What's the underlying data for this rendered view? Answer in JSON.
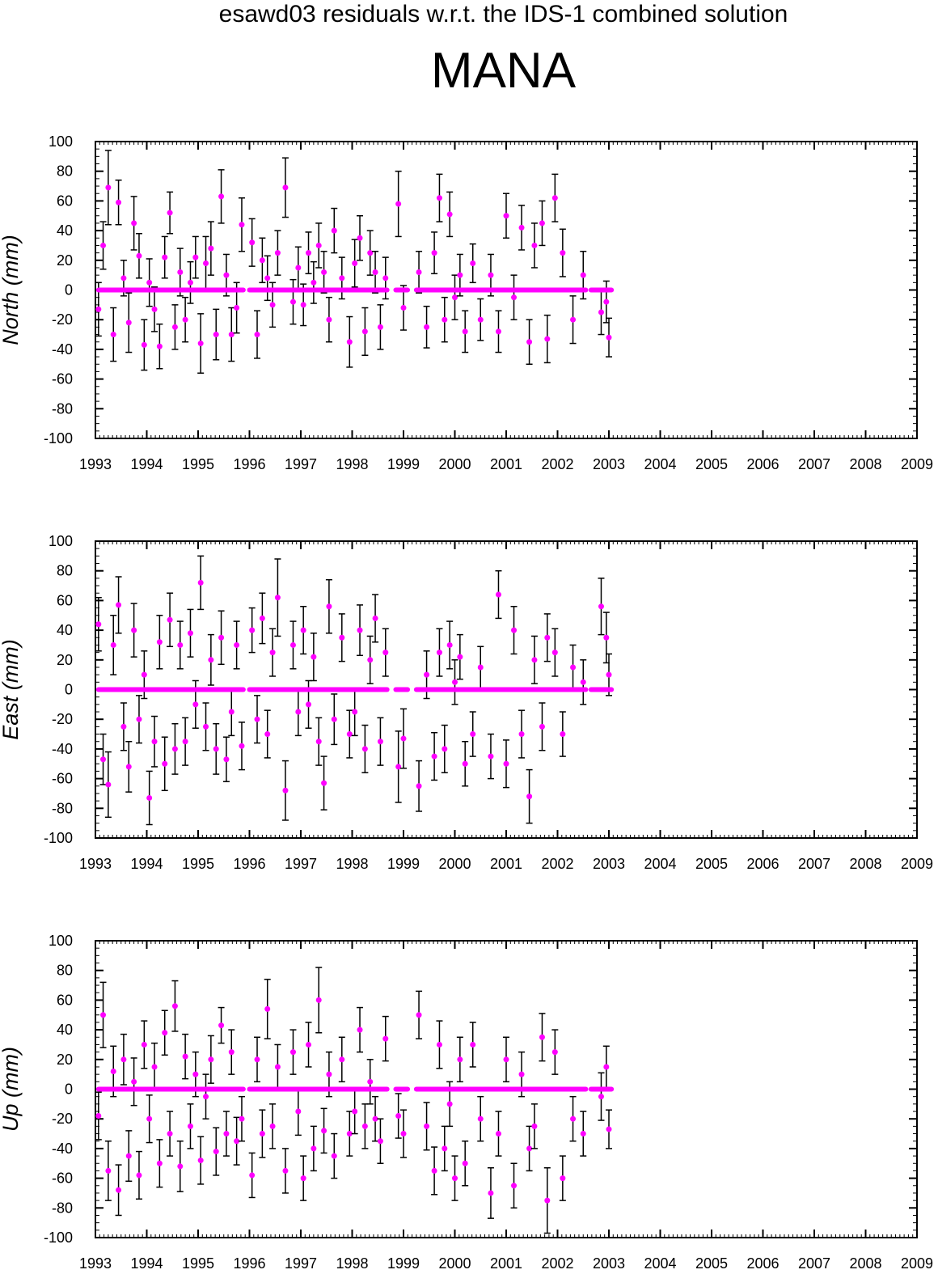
{
  "title": "esawd03 residuals w.r.t. the IDS-1 combined solution",
  "station": "MANA",
  "colors": {
    "marker": "#ff00ff",
    "errorbar": "#000000",
    "axes": "#000000",
    "background": "#ffffff"
  },
  "chart_data": [
    {
      "type": "scatter",
      "component": "North",
      "ylabel": "North (mm)",
      "xlim": [
        1993,
        2009
      ],
      "ylim": [
        -100,
        100
      ],
      "x_ticks": [
        "1993",
        "1994",
        "1995",
        "1996",
        "1997",
        "1998",
        "1999",
        "2000",
        "2001",
        "2002",
        "2003",
        "2004",
        "2005",
        "2006",
        "2007",
        "2008",
        "2009"
      ],
      "y_ticks": [
        "100",
        "80",
        "60",
        "40",
        "20",
        "0",
        "-20",
        "-40",
        "-60",
        "-80",
        "-100"
      ],
      "grid": false,
      "series": [
        {
          "values_note": "weekly residuals with error bars",
          "x": [
            1993.06,
            1993.15,
            1993.25,
            1993.35,
            1993.45,
            1993.55,
            1993.65,
            1993.75,
            1993.85,
            1993.95,
            1994.05,
            1994.15,
            1994.25,
            1994.35,
            1994.45,
            1994.55,
            1994.65,
            1994.75,
            1994.85,
            1994.95,
            1995.05,
            1995.15,
            1995.25,
            1995.35,
            1995.45,
            1995.55,
            1995.65,
            1995.75,
            1995.85,
            1996.05,
            1996.15,
            1996.25,
            1996.35,
            1996.45,
            1996.55,
            1996.7,
            1996.85,
            1996.95,
            1997.05,
            1997.15,
            1997.25,
            1997.35,
            1997.45,
            1997.55,
            1997.65,
            1997.8,
            1997.95,
            1998.05,
            1998.15,
            1998.25,
            1998.35,
            1998.45,
            1998.55,
            1998.65,
            1998.9,
            1999.0,
            1999.3,
            1999.45,
            1999.6,
            1999.7,
            1999.8,
            1999.9,
            2000.0,
            2000.1,
            2000.2,
            2000.35,
            2000.5,
            2000.7,
            2000.85,
            2001.0,
            2001.15,
            2001.3,
            2001.45,
            2001.55,
            2001.7,
            2001.8,
            2001.95,
            2002.1,
            2002.3,
            2002.5,
            2002.85,
            2002.95,
            2003.0
          ],
          "y": [
            -13,
            30,
            69,
            -30,
            59,
            8,
            -22,
            45,
            23,
            -37,
            5,
            -13,
            -38,
            22,
            52,
            -25,
            12,
            -20,
            5,
            22,
            -36,
            18,
            28,
            -30,
            63,
            10,
            -30,
            -12,
            44,
            32,
            -30,
            20,
            8,
            -10,
            25,
            69,
            -8,
            15,
            -10,
            25,
            5,
            30,
            12,
            -20,
            40,
            8,
            -35,
            18,
            35,
            -28,
            25,
            12,
            -25,
            8,
            58,
            -12,
            12,
            -25,
            25,
            62,
            -20,
            51,
            -5,
            10,
            -28,
            18,
            -20,
            10,
            -28,
            50,
            -5,
            42,
            -35,
            30,
            45,
            -33,
            62,
            25,
            -20,
            10,
            -15,
            -8,
            -32
          ],
          "err": [
            18,
            16,
            25,
            18,
            15,
            12,
            20,
            18,
            15,
            17,
            16,
            15,
            15,
            14,
            14,
            15,
            16,
            15,
            14,
            14,
            20,
            18,
            18,
            17,
            18,
            14,
            18,
            17,
            18,
            16,
            16,
            15,
            15,
            15,
            15,
            20,
            15,
            14,
            14,
            14,
            14,
            15,
            14,
            15,
            15,
            14,
            17,
            16,
            15,
            16,
            15,
            14,
            15,
            14,
            22,
            15,
            14,
            14,
            14,
            16,
            15,
            15,
            15,
            14,
            14,
            13,
            14,
            14,
            14,
            15,
            15,
            15,
            15,
            15,
            15,
            16,
            16,
            16,
            16,
            16,
            15,
            14,
            13
          ]
        }
      ]
    },
    {
      "type": "scatter",
      "component": "East",
      "ylabel": "East (mm)",
      "xlim": [
        1993,
        2009
      ],
      "ylim": [
        -100,
        100
      ],
      "x_ticks": [
        "1993",
        "1994",
        "1995",
        "1996",
        "1997",
        "1998",
        "1999",
        "2000",
        "2001",
        "2002",
        "2003",
        "2004",
        "2005",
        "2006",
        "2007",
        "2008",
        "2009"
      ],
      "y_ticks": [
        "100",
        "80",
        "60",
        "40",
        "20",
        "0",
        "-20",
        "-40",
        "-60",
        "-80",
        "-100"
      ],
      "grid": false,
      "series": [
        {
          "x": [
            1993.06,
            1993.15,
            1993.25,
            1993.35,
            1993.45,
            1993.55,
            1993.65,
            1993.75,
            1993.85,
            1993.95,
            1994.05,
            1994.15,
            1994.25,
            1994.35,
            1994.45,
            1994.55,
            1994.65,
            1994.75,
            1994.85,
            1994.95,
            1995.05,
            1995.15,
            1995.25,
            1995.35,
            1995.45,
            1995.55,
            1995.65,
            1995.75,
            1995.85,
            1996.05,
            1996.15,
            1996.25,
            1996.35,
            1996.45,
            1996.55,
            1996.7,
            1996.85,
            1996.95,
            1997.05,
            1997.15,
            1997.25,
            1997.35,
            1997.45,
            1997.55,
            1997.65,
            1997.8,
            1997.95,
            1998.05,
            1998.15,
            1998.25,
            1998.35,
            1998.45,
            1998.55,
            1998.65,
            1998.9,
            1999.0,
            1999.3,
            1999.45,
            1999.6,
            1999.7,
            1999.8,
            1999.9,
            2000.0,
            2000.1,
            2000.2,
            2000.35,
            2000.5,
            2000.7,
            2000.85,
            2001.0,
            2001.15,
            2001.3,
            2001.45,
            2001.55,
            2001.7,
            2001.8,
            2001.95,
            2002.1,
            2002.3,
            2002.5,
            2002.85,
            2002.95,
            2003.0
          ],
          "y": [
            44,
            -47,
            -64,
            30,
            57,
            -25,
            -52,
            40,
            -20,
            10,
            -73,
            -35,
            32,
            -50,
            47,
            -40,
            30,
            -35,
            38,
            -10,
            72,
            -25,
            20,
            -40,
            35,
            -47,
            -15,
            30,
            -38,
            40,
            -20,
            48,
            -30,
            25,
            62,
            -68,
            30,
            -15,
            40,
            -10,
            22,
            -35,
            -63,
            56,
            -20,
            35,
            -30,
            -15,
            40,
            -40,
            20,
            48,
            -35,
            25,
            -52,
            -33,
            -65,
            10,
            -45,
            25,
            -40,
            30,
            5,
            22,
            -50,
            -30,
            15,
            -45,
            64,
            -50,
            40,
            -30,
            -72,
            20,
            -25,
            35,
            25,
            -30,
            15,
            5,
            56,
            35,
            10
          ],
          "err": [
            18,
            17,
            22,
            20,
            19,
            16,
            17,
            18,
            16,
            16,
            18,
            17,
            18,
            18,
            18,
            17,
            16,
            16,
            16,
            16,
            18,
            16,
            17,
            17,
            18,
            15,
            16,
            16,
            16,
            15,
            16,
            17,
            16,
            16,
            26,
            20,
            16,
            16,
            16,
            16,
            16,
            16,
            18,
            18,
            17,
            16,
            16,
            16,
            17,
            16,
            16,
            16,
            16,
            16,
            24,
            20,
            17,
            16,
            16,
            16,
            16,
            16,
            15,
            15,
            15,
            15,
            14,
            15,
            16,
            16,
            16,
            16,
            18,
            16,
            16,
            16,
            16,
            15,
            15,
            15,
            19,
            17,
            14
          ]
        }
      ]
    },
    {
      "type": "scatter",
      "component": "Up",
      "ylabel": "Up (mm)",
      "xlim": [
        1993,
        2009
      ],
      "ylim": [
        -100,
        100
      ],
      "x_ticks": [
        "1993",
        "1994",
        "1995",
        "1996",
        "1997",
        "1998",
        "1999",
        "2000",
        "2001",
        "2002",
        "2003",
        "2004",
        "2005",
        "2006",
        "2007",
        "2008",
        "2009"
      ],
      "y_ticks": [
        "100",
        "80",
        "60",
        "40",
        "20",
        "0",
        "-20",
        "-40",
        "-60",
        "-80",
        "-100"
      ],
      "grid": false,
      "series": [
        {
          "x": [
            1993.06,
            1993.15,
            1993.25,
            1993.35,
            1993.45,
            1993.55,
            1993.65,
            1993.75,
            1993.85,
            1993.95,
            1994.05,
            1994.15,
            1994.25,
            1994.35,
            1994.45,
            1994.55,
            1994.65,
            1994.75,
            1994.85,
            1994.95,
            1995.05,
            1995.15,
            1995.25,
            1995.35,
            1995.45,
            1995.55,
            1995.65,
            1995.75,
            1995.85,
            1996.05,
            1996.15,
            1996.25,
            1996.35,
            1996.45,
            1996.55,
            1996.7,
            1996.85,
            1996.95,
            1997.05,
            1997.15,
            1997.25,
            1997.35,
            1997.45,
            1997.55,
            1997.65,
            1997.8,
            1997.95,
            1998.05,
            1998.15,
            1998.25,
            1998.35,
            1998.45,
            1998.55,
            1998.65,
            1998.9,
            1999.0,
            1999.3,
            1999.45,
            1999.6,
            1999.7,
            1999.8,
            1999.9,
            2000.0,
            2000.1,
            2000.2,
            2000.35,
            2000.5,
            2000.7,
            2000.85,
            2001.0,
            2001.15,
            2001.3,
            2001.45,
            2001.55,
            2001.7,
            2001.8,
            2001.95,
            2002.1,
            2002.3,
            2002.5,
            2002.85,
            2002.95,
            2003.0
          ],
          "y": [
            -18,
            50,
            -55,
            12,
            -68,
            20,
            -45,
            5,
            -58,
            30,
            -20,
            15,
            -50,
            38,
            -30,
            56,
            -52,
            22,
            -25,
            10,
            -48,
            -5,
            20,
            -42,
            43,
            -30,
            25,
            -35,
            -20,
            -58,
            20,
            -30,
            54,
            -25,
            15,
            -55,
            25,
            -15,
            -60,
            30,
            -40,
            60,
            -28,
            10,
            -45,
            20,
            -30,
            -15,
            40,
            -25,
            5,
            -20,
            -35,
            34,
            -18,
            -30,
            50,
            -25,
            -55,
            30,
            -40,
            -10,
            -60,
            20,
            -50,
            30,
            -20,
            -70,
            -30,
            20,
            -65,
            10,
            -40,
            -25,
            35,
            -75,
            25,
            -60,
            -20,
            -30,
            -5,
            15,
            -27
          ],
          "err": [
            16,
            22,
            20,
            17,
            17,
            17,
            17,
            16,
            16,
            16,
            16,
            16,
            16,
            15,
            15,
            17,
            17,
            15,
            15,
            15,
            16,
            15,
            16,
            16,
            12,
            15,
            15,
            16,
            15,
            15,
            15,
            16,
            20,
            15,
            15,
            15,
            15,
            16,
            15,
            15,
            15,
            22,
            15,
            15,
            15,
            15,
            15,
            15,
            15,
            15,
            15,
            15,
            15,
            15,
            15,
            16,
            16,
            16,
            16,
            16,
            15,
            15,
            15,
            15,
            15,
            15,
            15,
            17,
            15,
            15,
            15,
            15,
            15,
            15,
            16,
            22,
            15,
            15,
            15,
            15,
            16,
            14,
            13
          ]
        }
      ]
    }
  ]
}
